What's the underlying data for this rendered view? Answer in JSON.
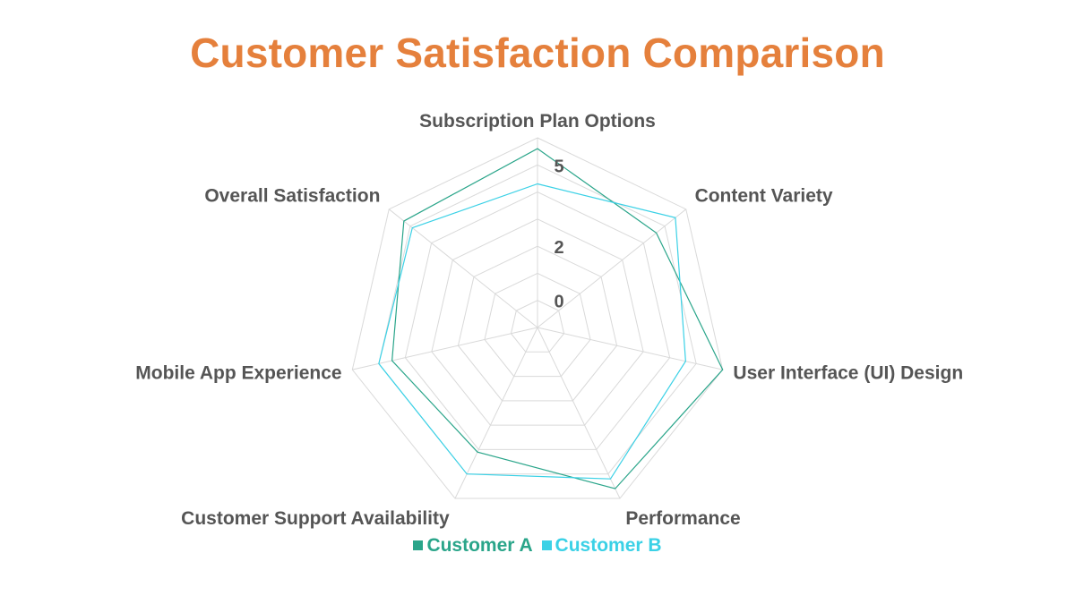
{
  "chart_data": {
    "type": "radar",
    "title": "Customer Satisfaction Comparison",
    "axes": [
      "Subscription Plan Options",
      "Content Variety",
      "User Interface (UI) Design",
      "Performance",
      "Customer Support Availability",
      "Mobile App Experience",
      "Overall Satisfaction"
    ],
    "tick_labels": [
      "0",
      "2",
      "5"
    ],
    "rlim": [
      -1,
      6
    ],
    "grid": true,
    "legend_position": "bottom",
    "series": [
      {
        "name": "Customer A",
        "color": "#2AA58A",
        "values": [
          5.6,
          4.6,
          6.0,
          5.6,
          4.1,
          4.5,
          5.3
        ]
      },
      {
        "name": "Customer B",
        "color": "#3BD1E6",
        "values": [
          4.3,
          5.5,
          4.6,
          5.2,
          5.0,
          5.0,
          4.9
        ]
      }
    ]
  }
}
